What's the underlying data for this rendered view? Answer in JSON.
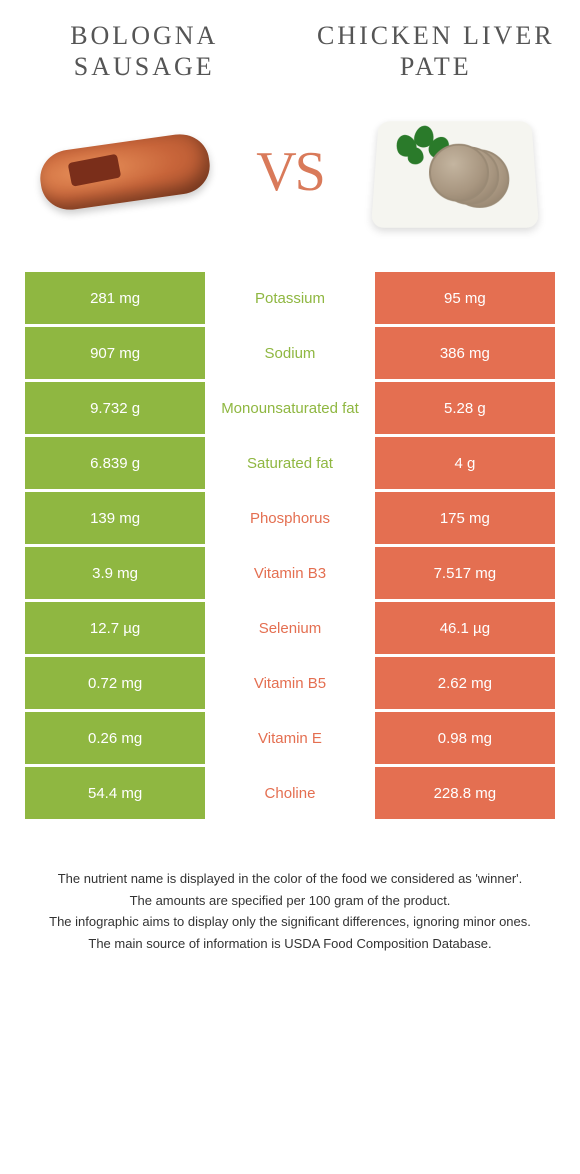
{
  "header": {
    "left_title": "BOLOGNA SAUSAGE",
    "right_title": "CHICKEN LIVER PATE",
    "vs_label": "VS"
  },
  "colors": {
    "left_bar": "#8fb741",
    "right_bar": "#e46f51",
    "left_winner_text": "#8fb741",
    "right_winner_text": "#e46f51",
    "title_text": "#555555"
  },
  "rows": [
    {
      "left": "281 mg",
      "label": "Potassium",
      "right": "95 mg",
      "winner": "left"
    },
    {
      "left": "907 mg",
      "label": "Sodium",
      "right": "386 mg",
      "winner": "left"
    },
    {
      "left": "9.732 g",
      "label": "Monounsaturated fat",
      "right": "5.28 g",
      "winner": "left"
    },
    {
      "left": "6.839 g",
      "label": "Saturated fat",
      "right": "4 g",
      "winner": "left"
    },
    {
      "left": "139 mg",
      "label": "Phosphorus",
      "right": "175 mg",
      "winner": "right"
    },
    {
      "left": "3.9 mg",
      "label": "Vitamin B3",
      "right": "7.517 mg",
      "winner": "right"
    },
    {
      "left": "12.7 µg",
      "label": "Selenium",
      "right": "46.1 µg",
      "winner": "right"
    },
    {
      "left": "0.72 mg",
      "label": "Vitamin B5",
      "right": "2.62 mg",
      "winner": "right"
    },
    {
      "left": "0.26 mg",
      "label": "Vitamin E",
      "right": "0.98 mg",
      "winner": "right"
    },
    {
      "left": "54.4 mg",
      "label": "Choline",
      "right": "228.8 mg",
      "winner": "right"
    }
  ],
  "footer": {
    "line1": "The nutrient name is displayed in the color of the food we considered as 'winner'.",
    "line2": "The amounts are specified per 100 gram of the product.",
    "line3": "The infographic aims to display only the significant differences, ignoring minor ones.",
    "line4": "The main source of information is USDA Food Composition Database."
  }
}
